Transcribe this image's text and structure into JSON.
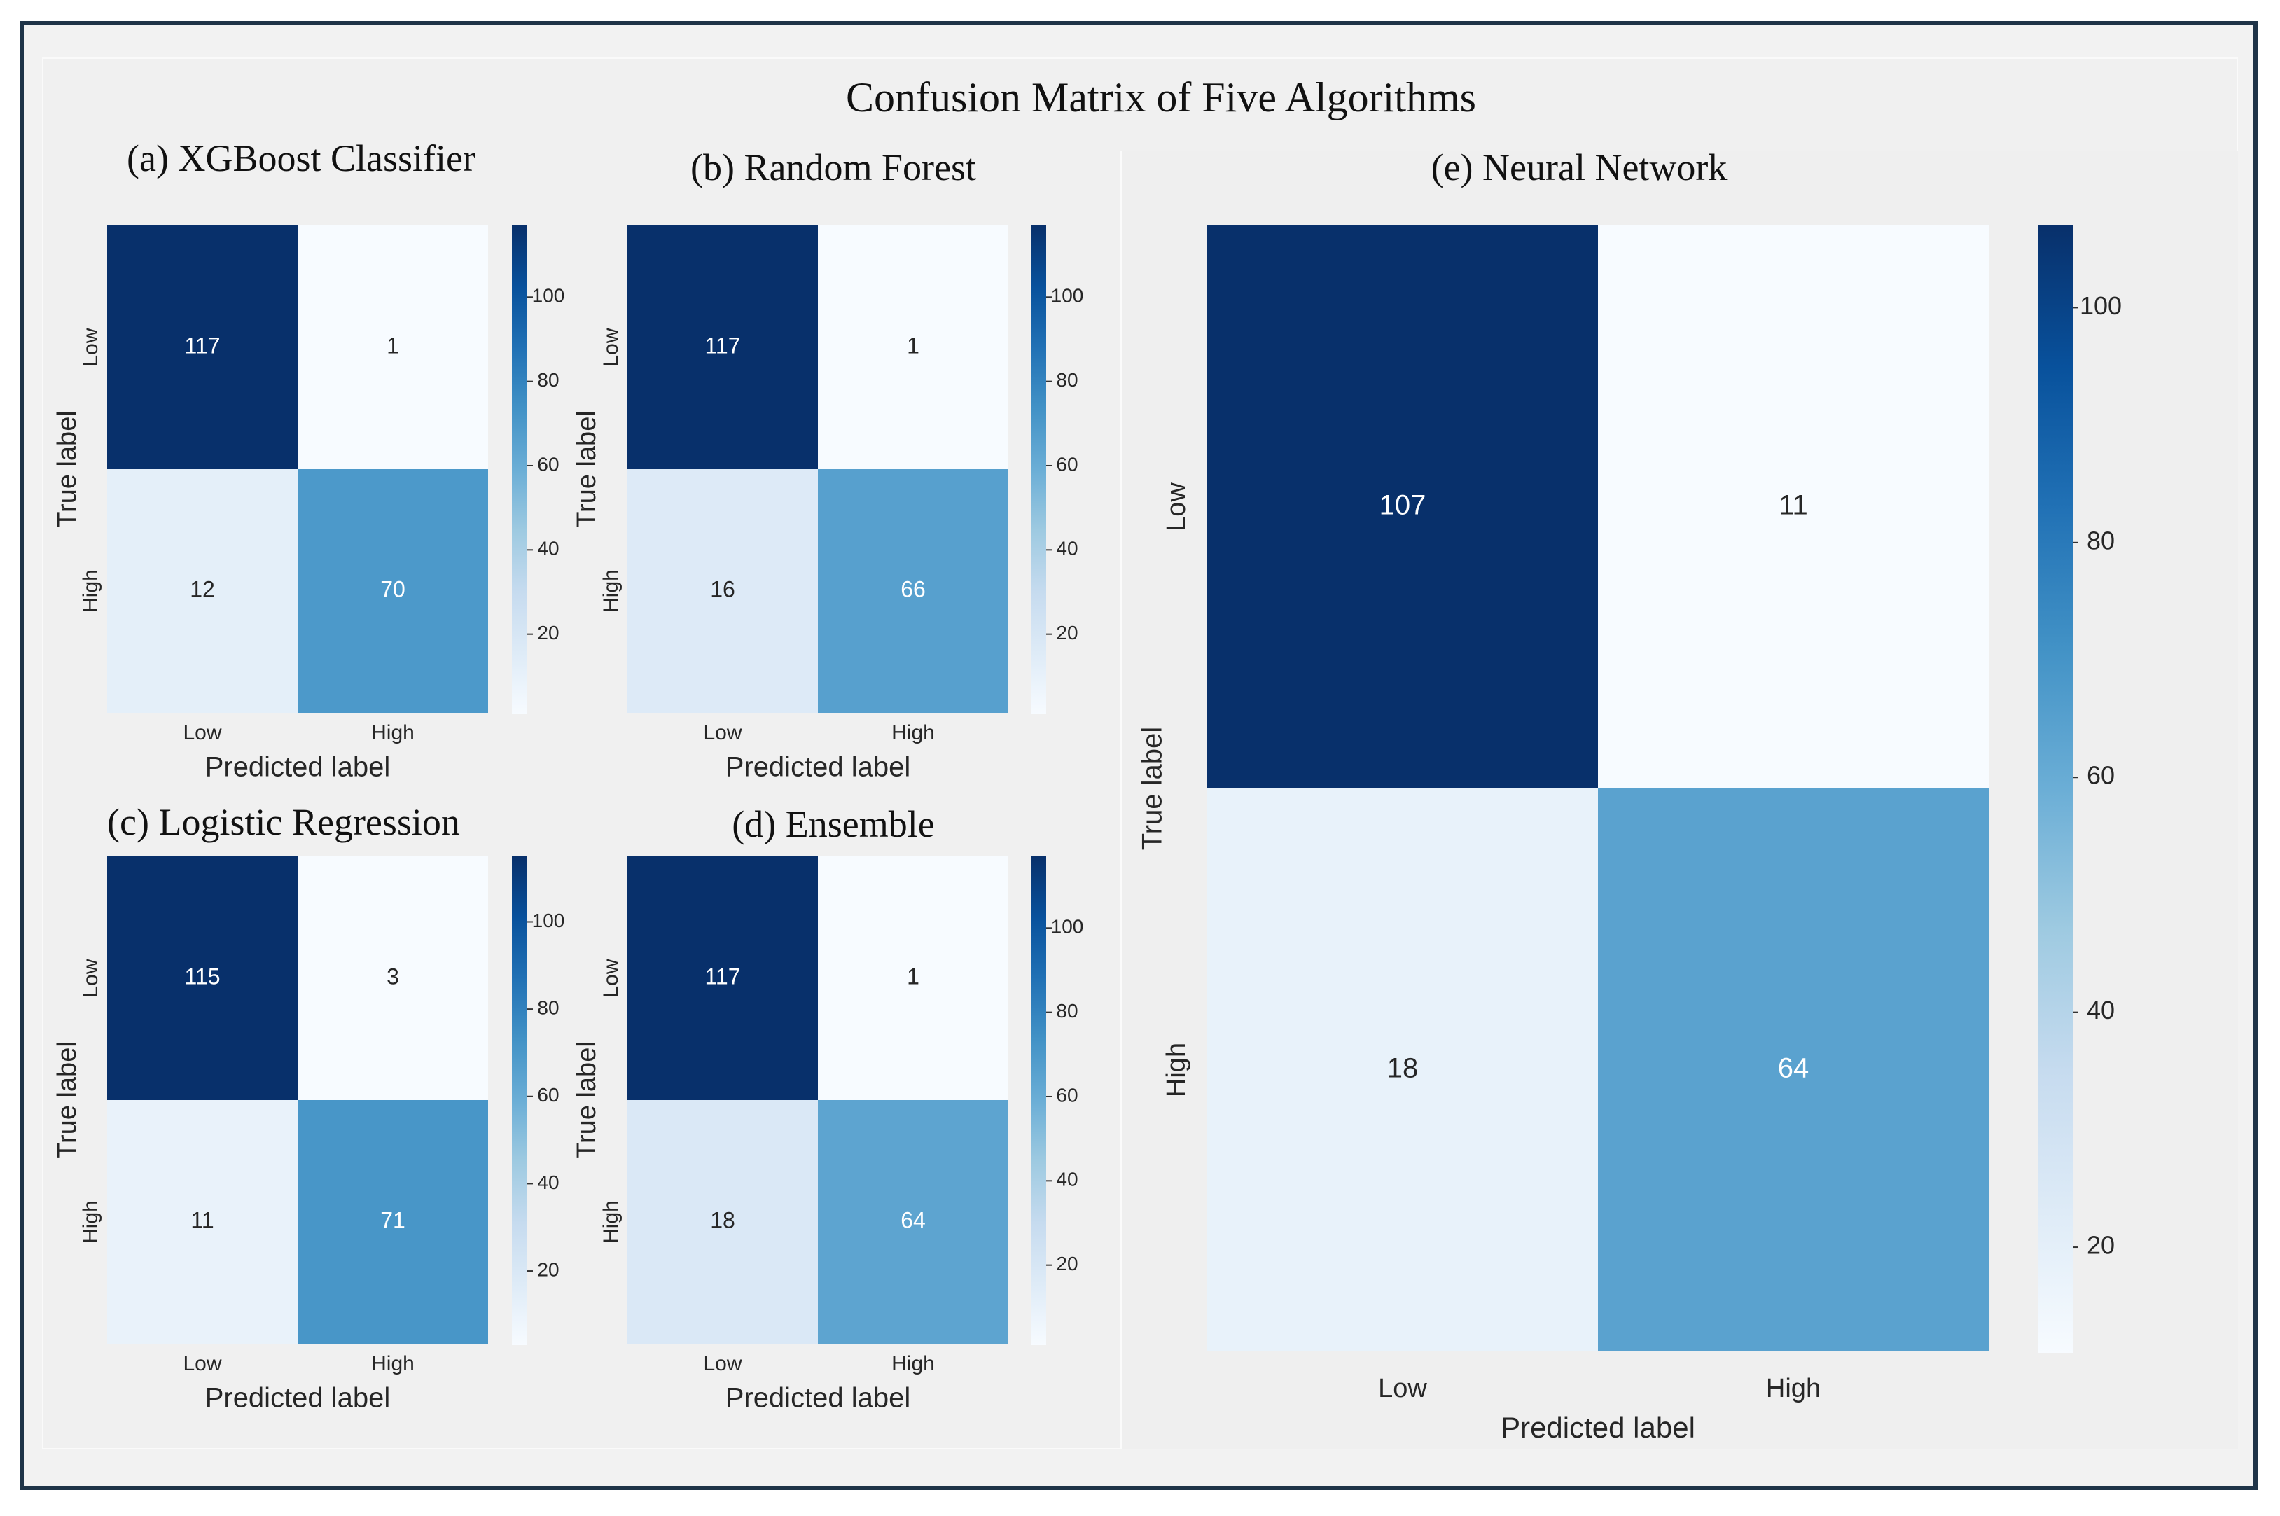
{
  "title": "Confusion Matrix of Five Algorithms",
  "chart_data": [
    {
      "type": "heatmap",
      "title": "(a) XGBoost Classifier",
      "xlabel": "Predicted label",
      "ylabel": "True label",
      "x_ticks": [
        "Low",
        "High"
      ],
      "y_ticks": [
        "Low",
        "High"
      ],
      "matrix": [
        [
          117,
          1
        ],
        [
          12,
          70
        ]
      ],
      "colorbar": {
        "ticks": [
          20,
          40,
          60,
          80,
          100
        ],
        "min": 1,
        "max": 117
      },
      "colormap": "Blues"
    },
    {
      "type": "heatmap",
      "title": "(b) Random Forest",
      "xlabel": "Predicted label",
      "ylabel": "True label",
      "x_ticks": [
        "Low",
        "High"
      ],
      "y_ticks": [
        "Low",
        "High"
      ],
      "matrix": [
        [
          117,
          1
        ],
        [
          16,
          66
        ]
      ],
      "colorbar": {
        "ticks": [
          20,
          40,
          60,
          80,
          100
        ],
        "min": 1,
        "max": 117
      },
      "colormap": "Blues"
    },
    {
      "type": "heatmap",
      "title": "(c) Logistic Regression",
      "xlabel": "Predicted label",
      "ylabel": "True label",
      "x_ticks": [
        "Low",
        "High"
      ],
      "y_ticks": [
        "Low",
        "High"
      ],
      "matrix": [
        [
          115,
          3
        ],
        [
          11,
          71
        ]
      ],
      "colorbar": {
        "ticks": [
          20,
          40,
          60,
          80,
          100
        ],
        "min": 3,
        "max": 115
      },
      "colormap": "Blues"
    },
    {
      "type": "heatmap",
      "title": "(d) Ensemble",
      "xlabel": "Predicted label",
      "ylabel": "True label",
      "x_ticks": [
        "Low",
        "High"
      ],
      "y_ticks": [
        "Low",
        "High"
      ],
      "matrix": [
        [
          117,
          1
        ],
        [
          18,
          64
        ]
      ],
      "colorbar": {
        "ticks": [
          20,
          40,
          60,
          80,
          100
        ],
        "min": 1,
        "max": 117
      },
      "colormap": "Blues"
    },
    {
      "type": "heatmap",
      "title": "(e) Neural Network",
      "xlabel": "Predicted label",
      "ylabel": "True label",
      "x_ticks": [
        "Low",
        "High"
      ],
      "y_ticks": [
        "Low",
        "High"
      ],
      "matrix": [
        [
          107,
          11
        ],
        [
          18,
          64
        ]
      ],
      "colorbar": {
        "ticks": [
          20,
          40,
          60,
          80,
          100
        ],
        "min": 11,
        "max": 107
      },
      "colormap": "Blues"
    }
  ]
}
